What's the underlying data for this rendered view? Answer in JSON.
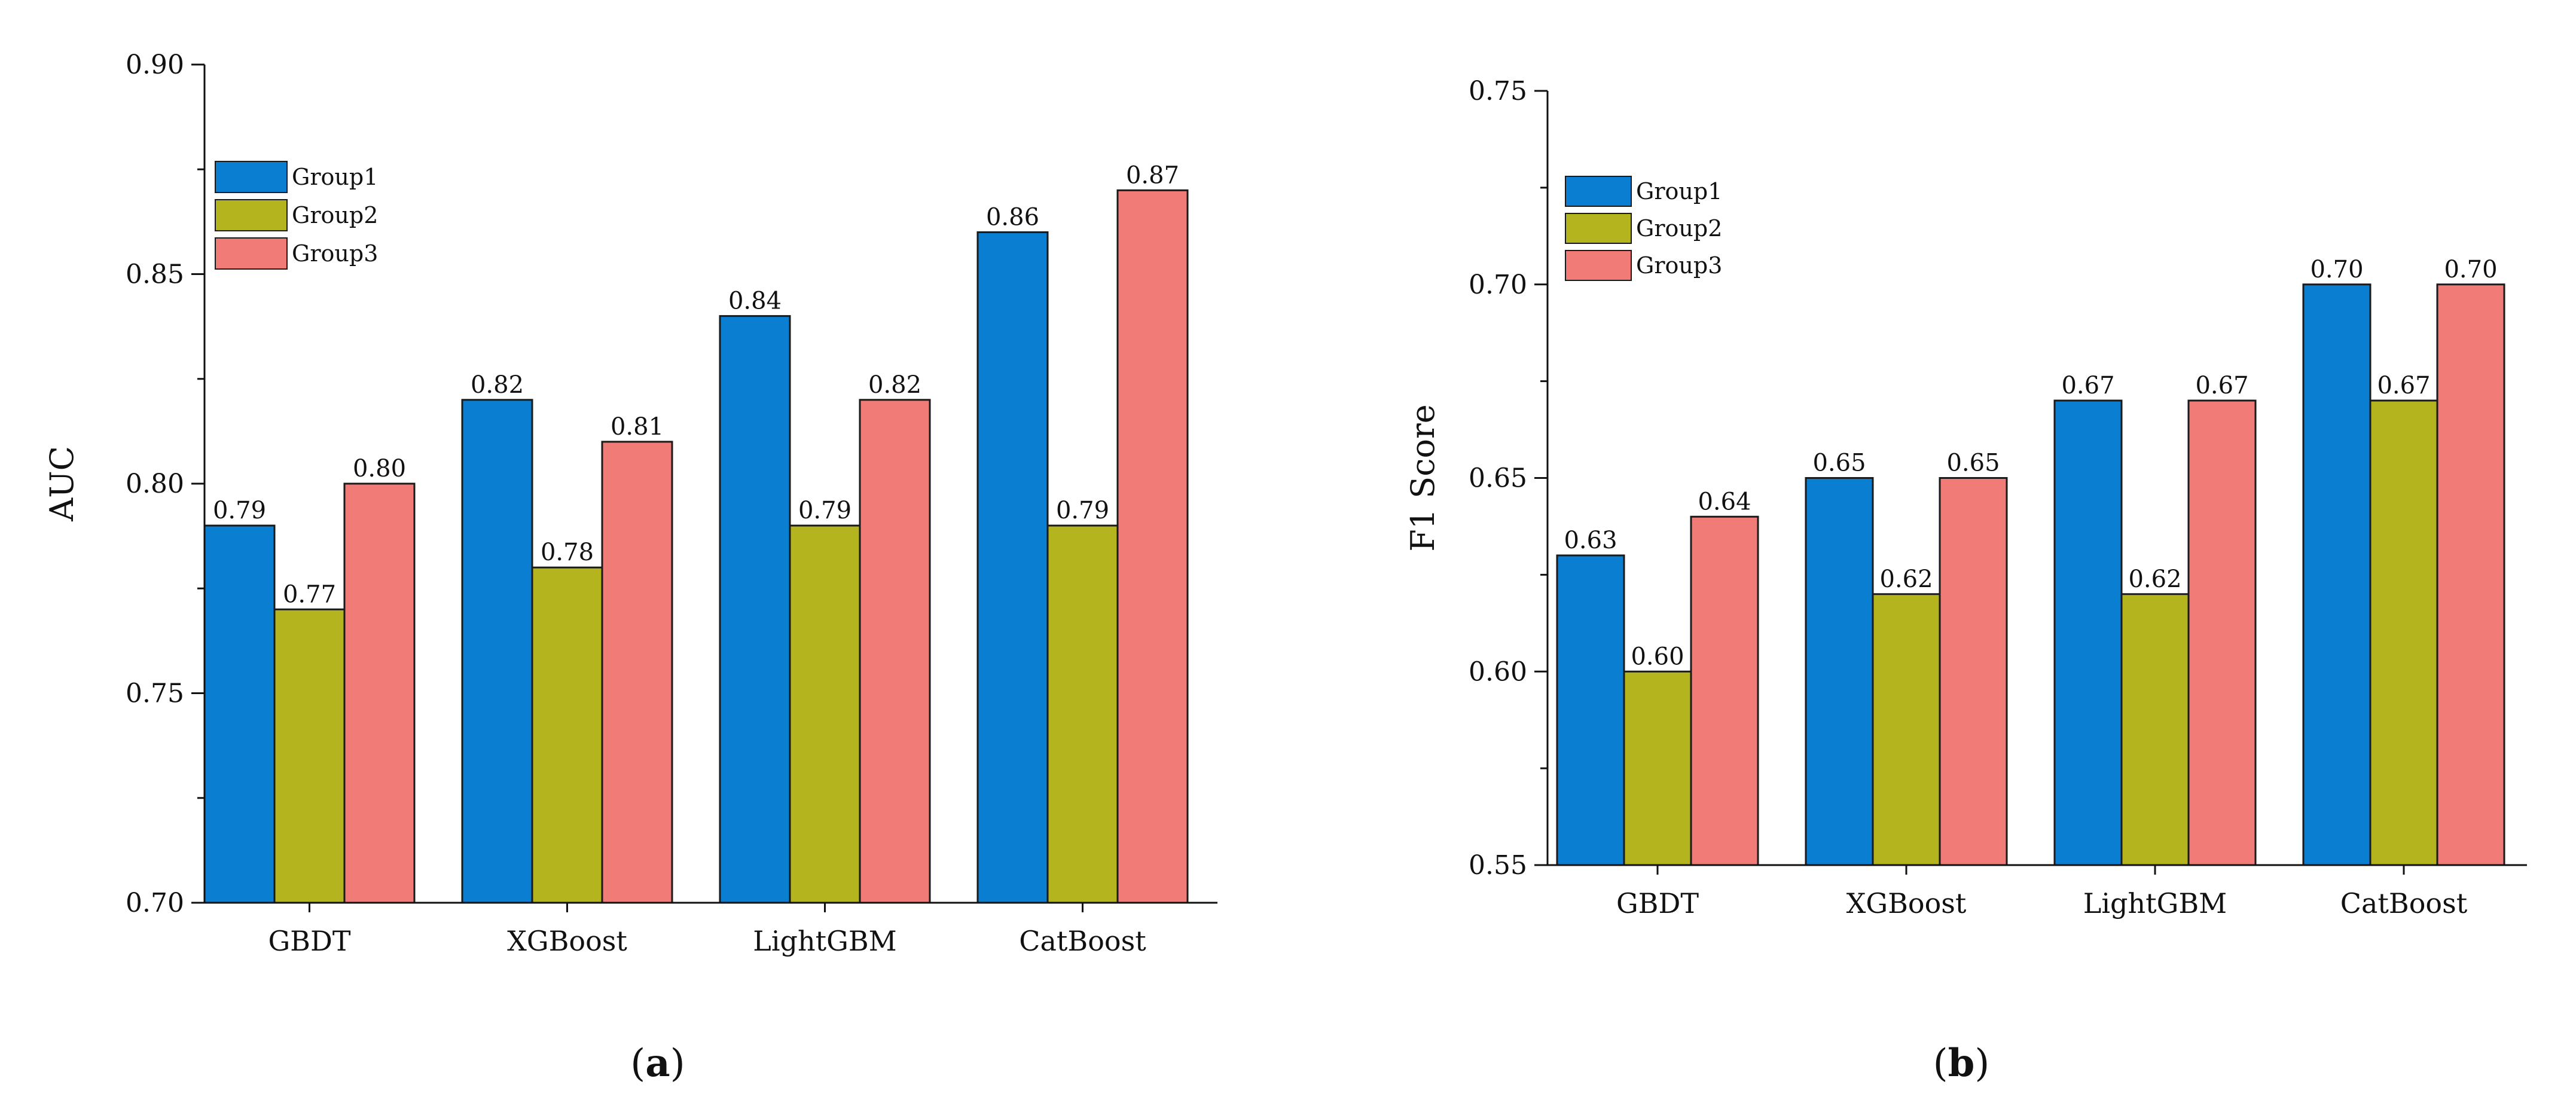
{
  "chart_data": [
    {
      "type": "bar",
      "panel_label": "a",
      "categories": [
        "GBDT",
        "XGBoost",
        "LightGBM",
        "CatBoost"
      ],
      "series": [
        {
          "name": "Group1",
          "values": [
            0.79,
            0.82,
            0.84,
            0.86
          ],
          "labels": [
            "0.79",
            "0.82",
            "0.84",
            "0.86"
          ],
          "color": "#0a7ed0"
        },
        {
          "name": "Group2",
          "values": [
            0.77,
            0.78,
            0.79,
            0.79
          ],
          "labels": [
            "0.77",
            "0.78",
            "0.79",
            "0.79"
          ],
          "color": "#b4b41e"
        },
        {
          "name": "Group3",
          "values": [
            0.8,
            0.81,
            0.82,
            0.87
          ],
          "labels": [
            "0.80",
            "0.81",
            "0.82",
            "0.87"
          ],
          "color": "#f17b76"
        }
      ],
      "xlabel": "",
      "ylabel": "AUC",
      "ylim": [
        0.7,
        0.9
      ],
      "yticks": [
        "0.70",
        "0.75",
        "0.80",
        "0.85",
        "0.90"
      ],
      "grid": false,
      "legend_position": "top-left"
    },
    {
      "type": "bar",
      "panel_label": "b",
      "categories": [
        "GBDT",
        "XGBoost",
        "LightGBM",
        "CatBoost"
      ],
      "series": [
        {
          "name": "Group1",
          "values": [
            0.63,
            0.65,
            0.67,
            0.7
          ],
          "labels": [
            "0.63",
            "0.65",
            "0.67",
            "0.70"
          ],
          "color": "#0a7ed0"
        },
        {
          "name": "Group2",
          "values": [
            0.6,
            0.62,
            0.62,
            0.67
          ],
          "labels": [
            "0.60",
            "0.62",
            "0.62",
            "0.67"
          ],
          "color": "#b4b41e"
        },
        {
          "name": "Group3",
          "values": [
            0.64,
            0.65,
            0.67,
            0.7
          ],
          "labels": [
            "0.64",
            "0.65",
            "0.67",
            "0.70"
          ],
          "color": "#f17b76"
        }
      ],
      "xlabel": "",
      "ylabel": "F1 Score",
      "ylim": [
        0.55,
        0.75
      ],
      "yticks": [
        "0.55",
        "0.60",
        "0.65",
        "0.70",
        "0.75"
      ],
      "grid": false,
      "legend_position": "top-left"
    }
  ]
}
